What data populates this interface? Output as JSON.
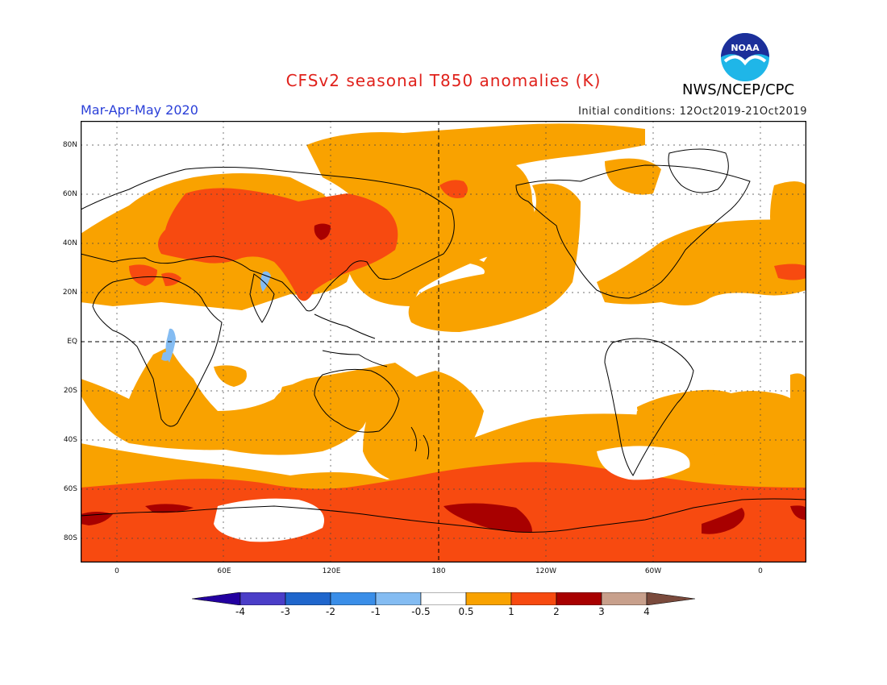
{
  "header": {
    "title": "CFSv2 seasonal T850 anomalies (K)",
    "season": "Mar-Apr-May 2020",
    "initial_conditions": "Initial conditions: 12Oct2019-21Oct2019",
    "agency": "NWS/NCEP/CPC",
    "logo_text": "NOAA"
  },
  "map": {
    "lat_labels": [
      "80N",
      "60N",
      "40N",
      "20N",
      "EQ",
      "20S",
      "40S",
      "60S",
      "80S"
    ],
    "lon_labels": [
      "0",
      "60E",
      "120E",
      "180",
      "120W",
      "60W",
      "0"
    ],
    "colors": {
      "ocean_neutral": "#ffffff",
      "anom_0_5_1": "#f9a200",
      "anom_1_2": "#f74a10",
      "anom_2_3": "#a80000",
      "anom_neg_0_5_1": "#84bcf2",
      "coastline": "#000000"
    }
  },
  "colorbar": {
    "labels": [
      "-4",
      "-3",
      "-2",
      "-1",
      "-0.5",
      "0.5",
      "1",
      "2",
      "3",
      "4"
    ],
    "colors": [
      "#2300a0",
      "#4b3ec8",
      "#1f66cc",
      "#3a8ee8",
      "#84bcf2",
      "#ffffff",
      "#f9a200",
      "#f74a10",
      "#a80000",
      "#c8a08c",
      "#7a4a3c"
    ]
  }
}
